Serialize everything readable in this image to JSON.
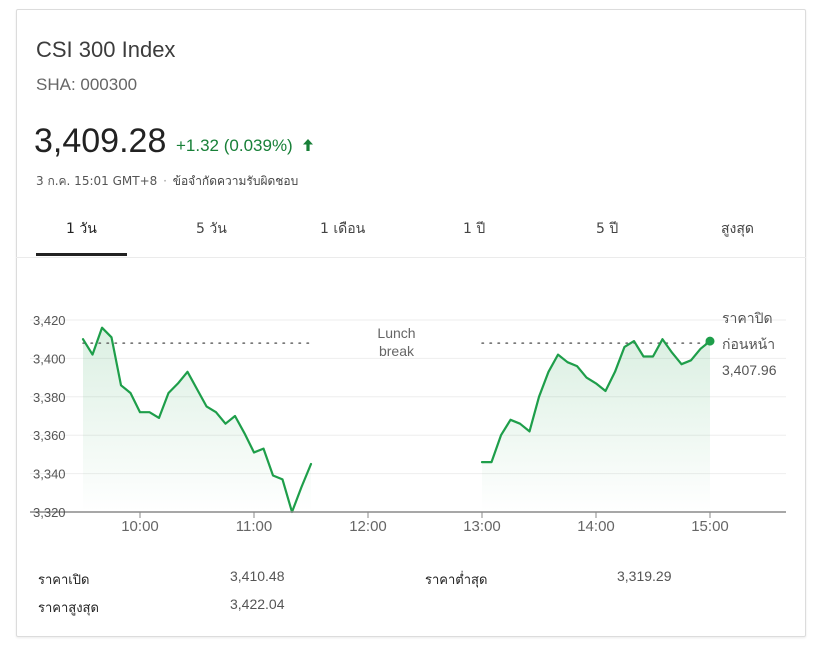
{
  "header": {
    "title": "CSI 300 Index",
    "ticker": "SHA: 000300"
  },
  "quote": {
    "price": "3,409.28",
    "change": "+1.32 (0.039%)",
    "direction": "up",
    "time": "3 ก.ค. 15:01 GMT+8",
    "disclaimer": "ข้อจำกัดความรับผิดชอบ",
    "separator": "·"
  },
  "tabs": [
    {
      "label": "1 วัน",
      "active": true
    },
    {
      "label": "5 วัน",
      "active": false
    },
    {
      "label": "1 เดือน",
      "active": false
    },
    {
      "label": "1 ปี",
      "active": false
    },
    {
      "label": "5 ปี",
      "active": false
    },
    {
      "label": "สูงสุด",
      "active": false
    }
  ],
  "colors": {
    "up": "#188038",
    "line": "#1e9e4a",
    "fill_top": "#e6f4ea",
    "grid": "#eeeeee",
    "dotted": "#666666"
  },
  "chart_data": {
    "type": "area",
    "ylim": [
      3320,
      3420
    ],
    "yticks": [
      3420,
      3400,
      3380,
      3360,
      3340,
      3320
    ],
    "ytick_labels": [
      "3,420",
      "3,400",
      "3,380",
      "3,360",
      "3,340",
      "3,320"
    ],
    "xlim": [
      "09:30",
      "15:40"
    ],
    "xticks": [
      "10:00",
      "11:00",
      "12:00",
      "13:00",
      "14:00",
      "15:00"
    ],
    "previous_close": 3407.96,
    "previous_close_label_line1": "ราคาปิด",
    "previous_close_label_line2": "ก่อนหน้า",
    "previous_close_value": "3,407.96",
    "lunch_label_line1": "Lunch",
    "lunch_label_line2": "break",
    "lunch_break": [
      "11:30",
      "13:00"
    ],
    "session_1": {
      "x": [
        "09:30",
        "09:35",
        "09:40",
        "09:45",
        "09:50",
        "09:55",
        "10:00",
        "10:05",
        "10:10",
        "10:15",
        "10:20",
        "10:25",
        "10:30",
        "10:35",
        "10:40",
        "10:45",
        "10:50",
        "10:55",
        "11:00",
        "11:05",
        "11:10",
        "11:15",
        "11:20",
        "11:25",
        "11:30"
      ],
      "y": [
        3410,
        3402,
        3416,
        3411,
        3386,
        3382,
        3372,
        3372,
        3369,
        3382,
        3387,
        3393,
        3384,
        3375,
        3372,
        3366,
        3370,
        3361,
        3351,
        3353,
        3339,
        3337,
        3320,
        3333,
        3345
      ]
    },
    "session_2": {
      "x": [
        "13:00",
        "13:05",
        "13:10",
        "13:15",
        "13:20",
        "13:25",
        "13:30",
        "13:35",
        "13:40",
        "13:45",
        "13:50",
        "13:55",
        "14:00",
        "14:05",
        "14:10",
        "14:15",
        "14:20",
        "14:25",
        "14:30",
        "14:35",
        "14:40",
        "14:45",
        "14:50",
        "14:55",
        "15:00"
      ],
      "y": [
        3346,
        3346,
        3360,
        3368,
        3366,
        3362,
        3380,
        3393,
        3402,
        3398,
        3396,
        3390,
        3387,
        3383,
        3393,
        3406,
        3409,
        3401,
        3401,
        3410,
        3403,
        3397,
        3399,
        3405,
        3409
      ]
    }
  },
  "stats": {
    "open_label": "ราคาเปิด",
    "open_value": "3,410.48",
    "high_label": "ราคาสูงสุด",
    "high_value": "3,422.04",
    "low_label": "ราคาต่ำสุด",
    "low_value": "3,319.29"
  }
}
